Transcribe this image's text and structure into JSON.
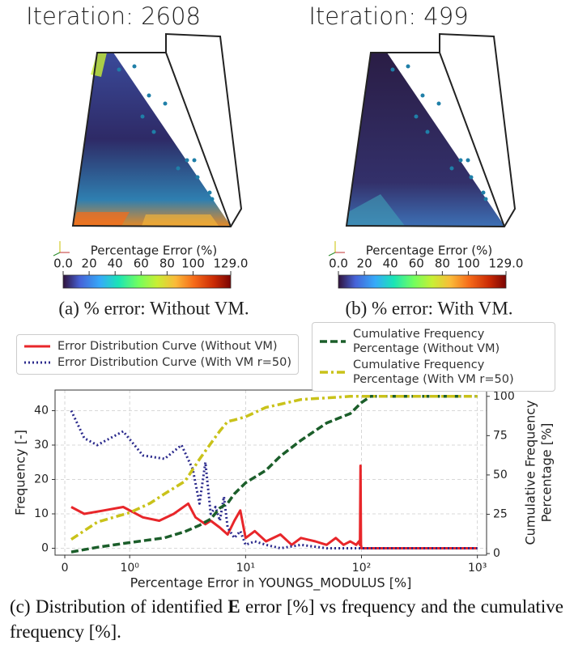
{
  "panels": [
    {
      "title": "Iteration: 2608",
      "colorbar_label": "Percentage Error (%)",
      "colorbar_lim": [
        0,
        129
      ],
      "colorbar_ticks": [
        {
          "value": 0,
          "label": "0.0"
        },
        20,
        40,
        60,
        80,
        100,
        {
          "value": 129,
          "label": "129.0"
        }
      ],
      "caption": "(a) % error: Without VM."
    },
    {
      "title": "Iteration: 499",
      "colorbar_label": "Percentage Error (%)",
      "colorbar_lim": [
        0,
        129
      ],
      "colorbar_ticks": [
        {
          "value": 0,
          "label": "0.0"
        },
        20,
        40,
        60,
        80,
        100,
        {
          "value": 129,
          "label": "129.0"
        }
      ],
      "caption": "(b) % error: With VM."
    }
  ],
  "caption_c": {
    "before": "(c) Distribution of identified ",
    "bold": "E",
    "after": " error [%] vs frequency and the cumulative frequency [%]."
  },
  "chart_data": {
    "type": "line",
    "xscale": "symlog",
    "grid": true,
    "xlabel": "Percentage Error in YOUNGS_MODULUS [%]",
    "ylabel": "Frequency [-]",
    "y2label": [
      "Cumulative Frequency",
      "Percentage [%]"
    ],
    "xlim": [
      -0.15,
      1200
    ],
    "ylim": [
      -2,
      46
    ],
    "y2lim": [
      -1,
      104
    ],
    "xticks": [
      0,
      {
        "value": 1,
        "label": "10⁰"
      },
      {
        "value": 10,
        "label": "10¹"
      },
      {
        "value": 100,
        "label": "10²"
      },
      {
        "value": 1000,
        "label": "10³"
      }
    ],
    "yticks": [
      0,
      10,
      20,
      30,
      40
    ],
    "y2ticks": [
      0,
      25,
      50,
      75,
      100
    ],
    "series": [
      {
        "name": "Error Distribution Curve (Without VM)",
        "color": "#e8262a",
        "linestyle": "solid",
        "legend": "left",
        "x": [
          0.1,
          0.3,
          0.6,
          0.9,
          1.3,
          1.8,
          2.4,
          3.2,
          3.7,
          4.5,
          5,
          6,
          7,
          8,
          9,
          10,
          12,
          15,
          20,
          25,
          30,
          40,
          50,
          60,
          70,
          80,
          90,
          95,
          97,
          98,
          99,
          100,
          150,
          300,
          1000
        ],
        "values": [
          12,
          10,
          11,
          12,
          9,
          8,
          10,
          13,
          9,
          7,
          8,
          6,
          4,
          8,
          11,
          3,
          5,
          2,
          4,
          1,
          3,
          2,
          1,
          3,
          1,
          2,
          1,
          2,
          1,
          24,
          1,
          0,
          0,
          0,
          0
        ]
      },
      {
        "name": "Error Distribution Curve (With VM r=50)",
        "color": "#2b2a8c",
        "linestyle": "dotted",
        "legend": "left",
        "x": [
          0.1,
          0.3,
          0.5,
          0.9,
          1.3,
          2,
          2.8,
          3.5,
          4,
          4.5,
          5,
          5.5,
          6,
          6.5,
          7,
          8,
          9,
          10,
          12,
          15,
          20,
          30,
          50,
          100,
          1000
        ],
        "values": [
          40,
          32,
          30,
          34,
          27,
          26,
          30,
          23,
          13,
          25,
          10,
          12,
          8,
          15,
          6,
          3,
          5,
          1,
          2,
          1,
          0,
          1,
          0,
          0,
          0
        ]
      },
      {
        "name": "Cumulative Frequency Percentage (Without VM)",
        "color": "#1b5e2a",
        "linestyle": "dashed",
        "legend": "right",
        "axis": "y2",
        "x": [
          0.1,
          0.5,
          1,
          2,
          3,
          4,
          5,
          6,
          7,
          8,
          10,
          15,
          20,
          30,
          50,
          80,
          100,
          120,
          200,
          1000
        ],
        "values": [
          1,
          4,
          7,
          10,
          14,
          18,
          22,
          29,
          32,
          38,
          45,
          53,
          62,
          72,
          83,
          89,
          96,
          100,
          100,
          100
        ]
      },
      {
        "name": "Cumulative Frequency Percentage (With VM r=50)",
        "color": "#c9c21a",
        "linestyle": "dashdot",
        "legend": "right",
        "axis": "y2",
        "x": [
          0.1,
          0.5,
          1,
          1.5,
          2,
          3,
          4,
          5,
          6,
          7,
          8,
          10,
          15,
          20,
          30,
          50,
          80,
          100,
          1000
        ],
        "values": [
          9,
          20,
          26,
          32,
          38,
          46,
          60,
          70,
          78,
          84,
          85,
          87,
          93,
          95,
          98,
          99,
          100,
          100,
          100
        ]
      }
    ]
  }
}
